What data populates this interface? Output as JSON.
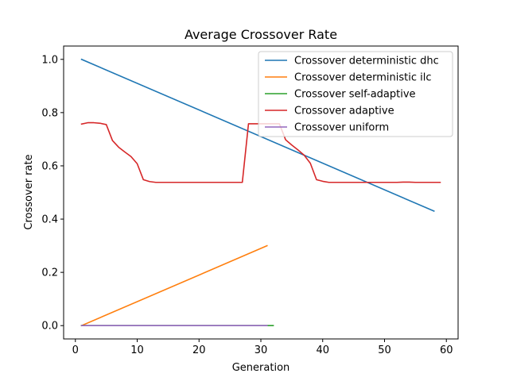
{
  "chart_data": {
    "type": "line",
    "title": "Average Crossover Rate",
    "xlabel": "Generation",
    "ylabel": "Crossover rate",
    "xlim": [
      -1.9,
      61.9
    ],
    "ylim": [
      -0.05,
      1.05
    ],
    "xticks": [
      0,
      10,
      20,
      30,
      40,
      50,
      60
    ],
    "yticks": [
      0.0,
      0.2,
      0.4,
      0.6,
      0.8,
      1.0
    ],
    "xtick_labels": [
      "0",
      "10",
      "20",
      "30",
      "40",
      "50",
      "60"
    ],
    "ytick_labels": [
      "0.0",
      "0.2",
      "0.4",
      "0.6",
      "0.8",
      "1.0"
    ],
    "grid": false,
    "legend_position": "top-right",
    "series": [
      {
        "name": "Crossover deterministic dhc",
        "color": "#1f77b4",
        "x": [
          1,
          58
        ],
        "y": [
          1.0,
          0.43
        ]
      },
      {
        "name": "Crossover deterministic ilc",
        "color": "#ff7f0e",
        "x": [
          1,
          31
        ],
        "y": [
          0.0,
          0.3
        ]
      },
      {
        "name": "Crossover self-adaptive",
        "color": "#2ca02c",
        "x": [
          1,
          32
        ],
        "y": [
          0.0,
          0.0
        ]
      },
      {
        "name": "Crossover adaptive",
        "color": "#d62728",
        "x": [
          1,
          2,
          3,
          4,
          5,
          6,
          7,
          8,
          9,
          10,
          11,
          12,
          13,
          14,
          15,
          16,
          17,
          18,
          19,
          20,
          21,
          22,
          23,
          24,
          25,
          26,
          27,
          28,
          29,
          30,
          31,
          32,
          33,
          34,
          35,
          36,
          37,
          38,
          39,
          40,
          41,
          42,
          43,
          44,
          45,
          46,
          47,
          48,
          49,
          50,
          51,
          52,
          53,
          54,
          55,
          56,
          57,
          58,
          59
        ],
        "y": [
          0.757,
          0.762,
          0.762,
          0.76,
          0.755,
          0.695,
          0.67,
          0.652,
          0.635,
          0.608,
          0.548,
          0.541,
          0.538,
          0.538,
          0.538,
          0.538,
          0.538,
          0.538,
          0.538,
          0.538,
          0.538,
          0.538,
          0.538,
          0.538,
          0.538,
          0.538,
          0.538,
          0.758,
          0.758,
          0.758,
          0.758,
          0.758,
          0.758,
          0.698,
          0.678,
          0.66,
          0.64,
          0.61,
          0.548,
          0.542,
          0.538,
          0.538,
          0.538,
          0.538,
          0.538,
          0.538,
          0.538,
          0.538,
          0.538,
          0.538,
          0.538,
          0.538,
          0.539,
          0.539,
          0.538,
          0.538,
          0.538,
          0.538,
          0.538
        ]
      },
      {
        "name": "Crossover uniform",
        "color": "#9467bd",
        "x": [
          1,
          31
        ],
        "y": [
          0.0,
          0.0
        ]
      }
    ]
  }
}
